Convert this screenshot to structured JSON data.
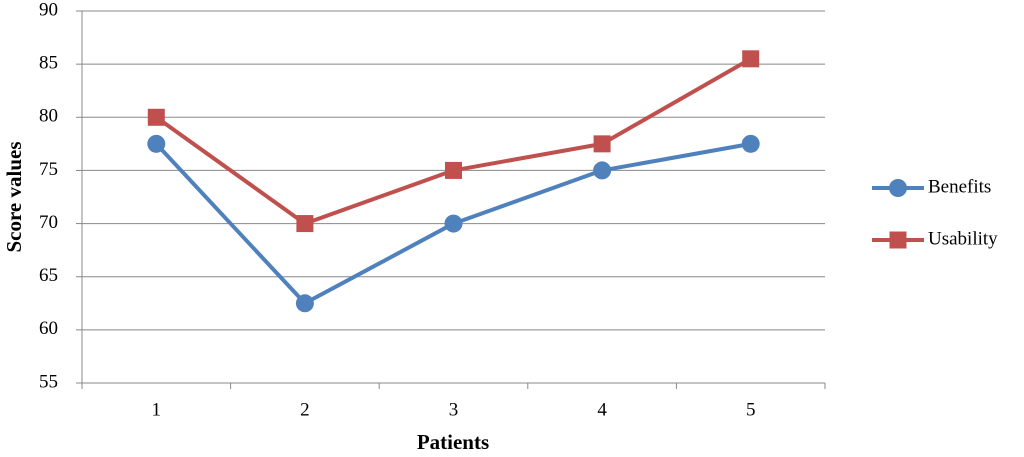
{
  "chart_data": {
    "type": "line",
    "x_label": "Patients",
    "y_label": "Score values",
    "categories": [
      "1",
      "2",
      "3",
      "4",
      "5"
    ],
    "series": [
      {
        "name": "Benefits",
        "color": "#4f81bd",
        "marker": "circle",
        "values": [
          77.5,
          62.5,
          70,
          75,
          77.5
        ]
      },
      {
        "name": "Usability",
        "color": "#c0504d",
        "marker": "square",
        "values": [
          80,
          70,
          75,
          77.5,
          85.5
        ]
      }
    ],
    "ylim": [
      55,
      90
    ],
    "yticks": [
      55,
      60,
      65,
      70,
      75,
      80,
      85,
      90
    ],
    "grid": true,
    "legend": "right"
  }
}
